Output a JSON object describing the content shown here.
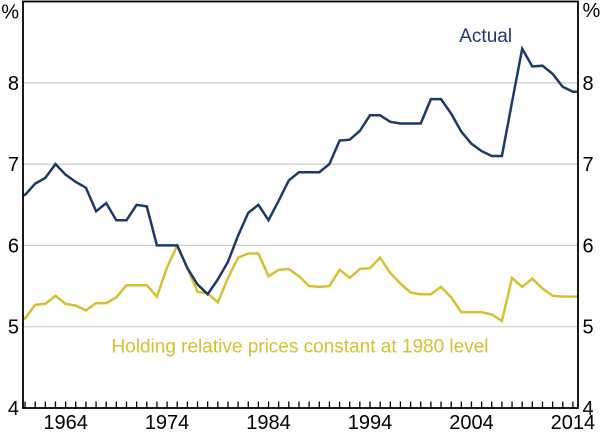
{
  "chart_data": {
    "type": "line",
    "title": "",
    "y_unit_left": "%",
    "y_unit_right": "%",
    "x": [
      1960,
      1961,
      1962,
      1963,
      1964,
      1965,
      1966,
      1967,
      1968,
      1969,
      1970,
      1971,
      1972,
      1973,
      1974,
      1975,
      1976,
      1977,
      1978,
      1979,
      1980,
      1981,
      1982,
      1983,
      1984,
      1985,
      1986,
      1987,
      1988,
      1989,
      1990,
      1991,
      1992,
      1993,
      1994,
      1995,
      1996,
      1997,
      1998,
      1999,
      2000,
      2001,
      2002,
      2003,
      2004,
      2005,
      2006,
      2007,
      2008,
      2009,
      2010,
      2011,
      2012,
      2013,
      2014
    ],
    "series": [
      {
        "name": "Actual",
        "color": "#1d3a66",
        "values": [
          6.62,
          6.76,
          6.83,
          7.0,
          6.87,
          6.78,
          6.71,
          6.42,
          6.52,
          6.31,
          6.31,
          6.5,
          6.48,
          6.0,
          6.0,
          6.0,
          5.72,
          5.52,
          5.4,
          5.58,
          5.8,
          6.12,
          6.4,
          6.5,
          6.31,
          6.55,
          6.8,
          6.9,
          6.9,
          6.9,
          7.0,
          7.29,
          7.3,
          7.41,
          7.6,
          7.6,
          7.52,
          7.5,
          7.5,
          7.5,
          7.8,
          7.8,
          7.62,
          7.4,
          7.25,
          7.16,
          7.1,
          7.1,
          7.76,
          8.42,
          8.2,
          8.21,
          8.11,
          7.95,
          7.89
        ]
      },
      {
        "name": "Holding relative prices constant at 1980 level",
        "color": "#d5c032",
        "values": [
          5.1,
          5.27,
          5.28,
          5.38,
          5.28,
          5.26,
          5.2,
          5.29,
          5.29,
          5.36,
          5.51,
          5.51,
          5.51,
          5.37,
          5.73,
          6.0,
          5.72,
          5.43,
          5.41,
          5.3,
          5.6,
          5.85,
          5.9,
          5.9,
          5.62,
          5.7,
          5.71,
          5.62,
          5.5,
          5.49,
          5.5,
          5.7,
          5.6,
          5.71,
          5.72,
          5.85,
          5.66,
          5.53,
          5.42,
          5.4,
          5.4,
          5.49,
          5.36,
          5.18,
          5.18,
          5.18,
          5.15,
          5.07,
          5.6,
          5.49,
          5.59,
          5.47,
          5.38,
          5.37,
          5.37
        ]
      }
    ],
    "annotations": [
      {
        "text": "Actual",
        "color": "#1d3a66",
        "x_year": 2005.4,
        "y_value": 8.5,
        "font_size": 19
      },
      {
        "text": "Holding relative prices constant at 1980 level",
        "color": "#d5c032",
        "x_year": 1987.1,
        "y_value": 4.68,
        "font_size": 19
      }
    ],
    "axes": {
      "ylim": [
        4,
        9
      ],
      "yticks": [
        4,
        5,
        6,
        7,
        8
      ],
      "gridlines": [
        5,
        6,
        7,
        8
      ],
      "xlim": [
        1959.8,
        2014.5
      ],
      "xtick_labels": [
        1964,
        1974,
        1984,
        1994,
        2004,
        2014
      ],
      "minor_tick_years": "every 1 year from 1960 to 2014",
      "grid_color": "#c9c9c9",
      "frame_color": "#000000",
      "tick_color": "#000000",
      "label_color": "#000000",
      "tick_label_font_size": 20
    },
    "legend_position": "in-chart annotations",
    "grid": "horizontal only"
  }
}
